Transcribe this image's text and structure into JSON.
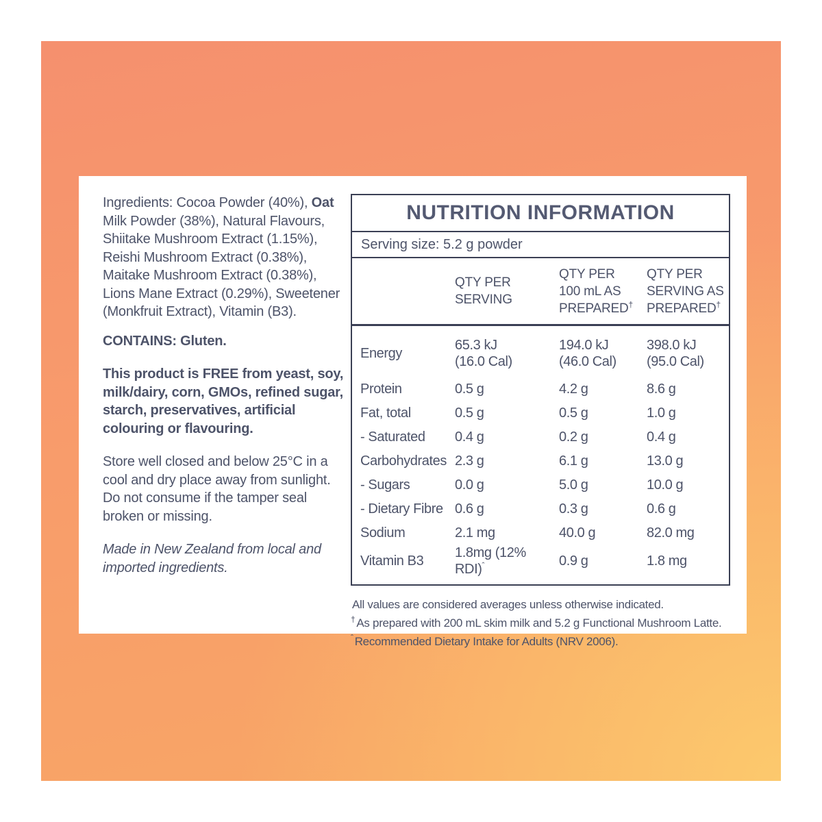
{
  "colors": {
    "background_coral": "#f5906e",
    "background_orange": "#f8a765",
    "background_gold": "#fcc96d",
    "card": "#ffffff",
    "text": "#4d5369",
    "table_border": "#3a3f54"
  },
  "left_column": {
    "ingredients_prefix": "Ingredients: Cocoa Powder (40%), ",
    "ingredients_bold": "Oat",
    "ingredients_rest": " Milk Powder (38%), Natural Flavours, Shiitake Mushroom Extract (1.15%), Reishi Mushroom Extract (0.38%), Maitake Mushroom Extract (0.38%), Lions Mane Extract (0.29%), Sweetener (Monkfruit Extract), Vitamin (B3).",
    "contains": "CONTAINS: Gluten.",
    "free_from": "This product is FREE from yeast, soy, milk/dairy, corn, GMOs, refined sugar, starch, preservatives, artificial colouring or flavouring.",
    "storage": "Store well closed and below 25°C in a cool and dry place away from sunlight. Do not consume if the tamper seal broken or missing.",
    "origin": "Made in New Zealand from local and imported ingredients."
  },
  "table": {
    "title": "NUTRITION INFORMATION",
    "serving_size": "Serving size: 5.2 g powder",
    "headers": [
      {
        "text": "QTY PER\nSERVING",
        "sup": ""
      },
      {
        "text": "QTY PER\n100 mL AS\nPREPARED",
        "sup": "†"
      },
      {
        "text": "QTY PER\nSERVING AS\nPREPARED",
        "sup": "†"
      }
    ],
    "rows": [
      {
        "label": "Energy",
        "values": [
          "65.3 kJ\n(16.0 Cal)",
          "194.0 kJ\n(46.0 Cal)",
          "398.0 kJ\n(95.0 Cal)"
        ]
      },
      {
        "label": "Protein",
        "values": [
          "0.5 g",
          "4.2 g",
          "8.6 g"
        ]
      },
      {
        "label": "Fat, total",
        "values": [
          "0.5 g",
          "0.5 g",
          "1.0 g"
        ]
      },
      {
        "label": "- Saturated",
        "values": [
          "0.4 g",
          "0.2 g",
          "0.4 g"
        ]
      },
      {
        "label": "Carbohydrates",
        "values": [
          "2.3 g",
          "6.1 g",
          "13.0 g"
        ]
      },
      {
        "label": "- Sugars",
        "values": [
          "0.0 g",
          "5.0 g",
          "10.0 g"
        ]
      },
      {
        "label": "- Dietary Fibre",
        "values": [
          "0.6 g",
          "0.3 g",
          "0.6 g"
        ]
      },
      {
        "label": "Sodium",
        "values": [
          "2.1 mg",
          "40.0 g",
          "82.0 mg"
        ]
      },
      {
        "label": "Vitamin B3",
        "values": [
          "1.8mg (12% RDI)",
          "0.9 g",
          "1.8 mg"
        ],
        "value_sup": "ˆ"
      }
    ]
  },
  "footnotes": [
    {
      "sup": "",
      "text": "All values are considered averages unless otherwise indicated."
    },
    {
      "sup": "†",
      "text": "As prepared with 200 mL skim milk and 5.2 g Functional Mushroom Latte."
    },
    {
      "sup": "ˆ",
      "text": "Recommended Dietary Intake for Adults (NRV 2006)."
    }
  ]
}
